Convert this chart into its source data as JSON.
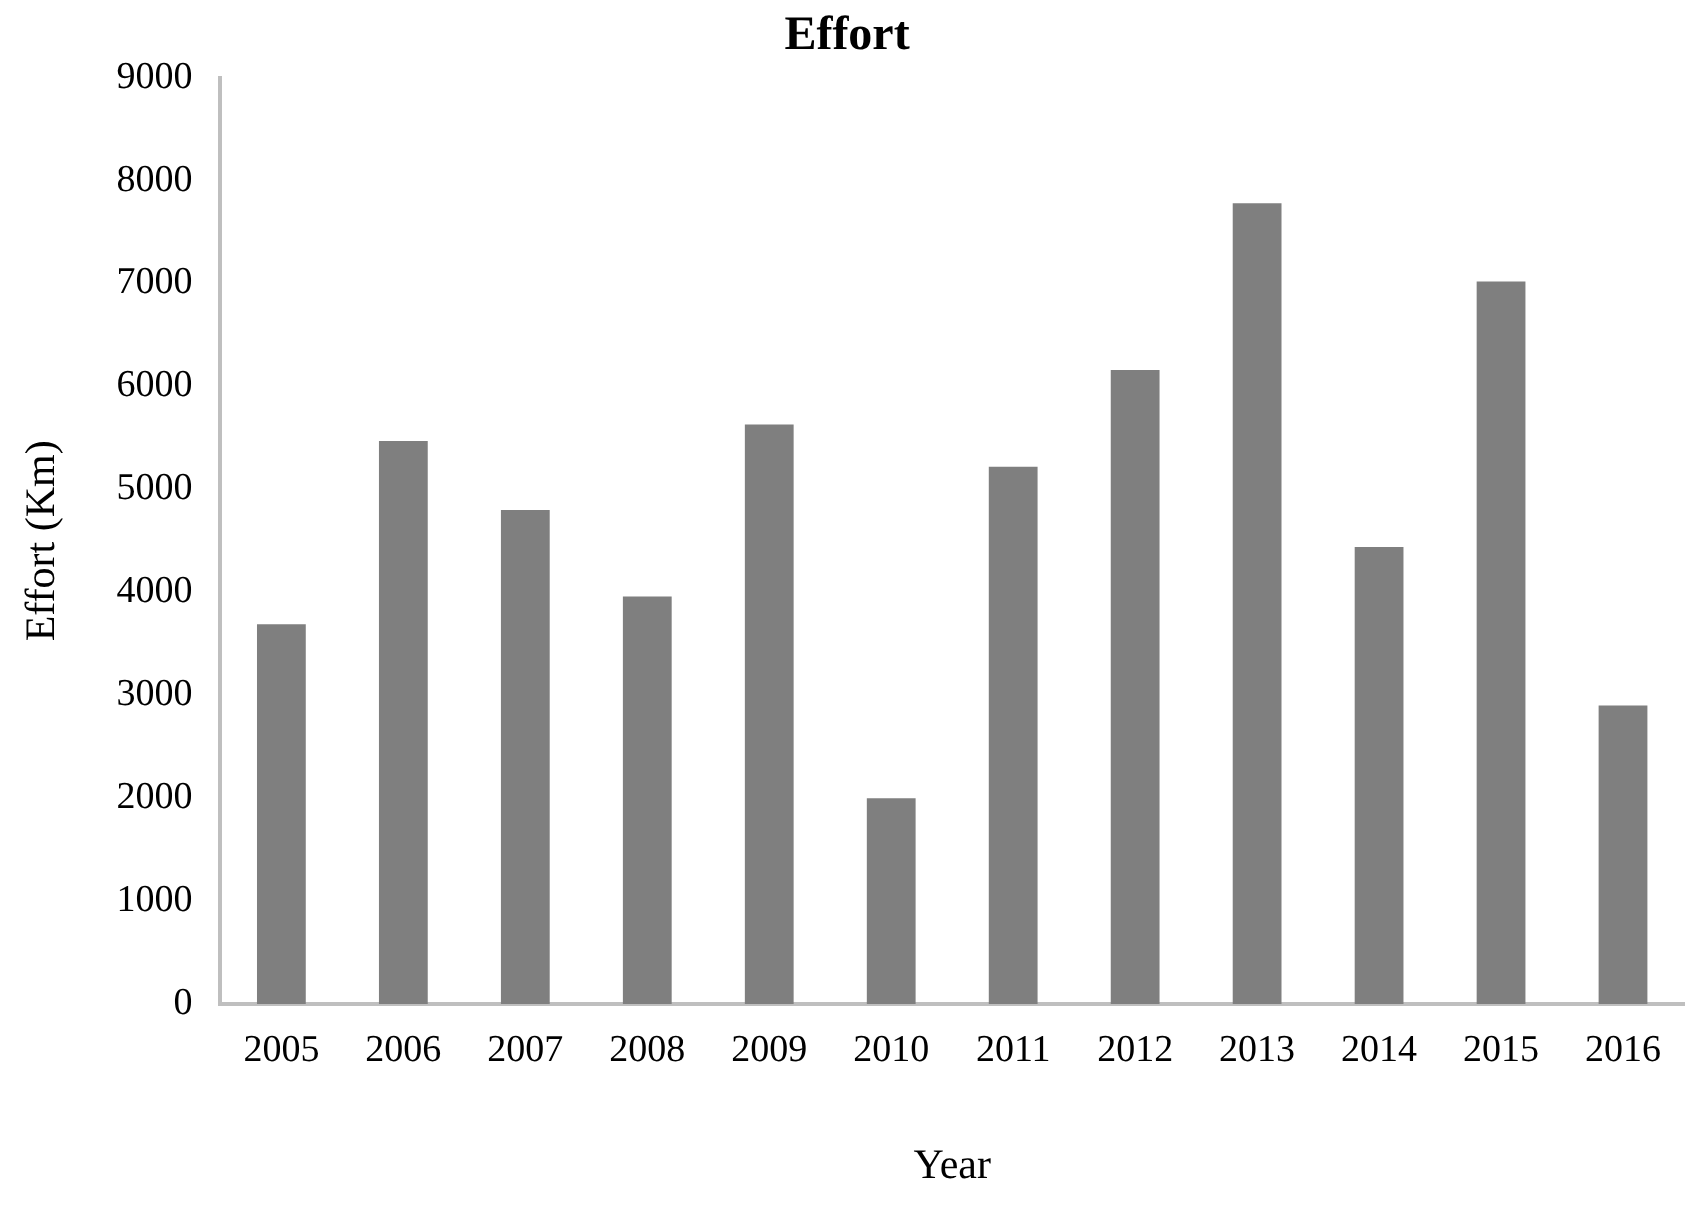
{
  "chart_data": {
    "type": "bar",
    "title": "Effort",
    "xlabel": "Year",
    "ylabel": "Effort (Km)",
    "categories": [
      "2005",
      "2006",
      "2007",
      "2008",
      "2009",
      "2010",
      "2011",
      "2012",
      "2013",
      "2014",
      "2015",
      "2016"
    ],
    "values": [
      3690,
      5470,
      4800,
      3960,
      5630,
      2000,
      5220,
      6160,
      7780,
      4440,
      7020,
      2900
    ],
    "color": "#7f7f7f",
    "ylim": [
      0,
      9000
    ],
    "yticks": [
      0,
      1000,
      2000,
      3000,
      4000,
      5000,
      6000,
      7000,
      8000,
      9000
    ],
    "grid": false,
    "legend": false
  }
}
